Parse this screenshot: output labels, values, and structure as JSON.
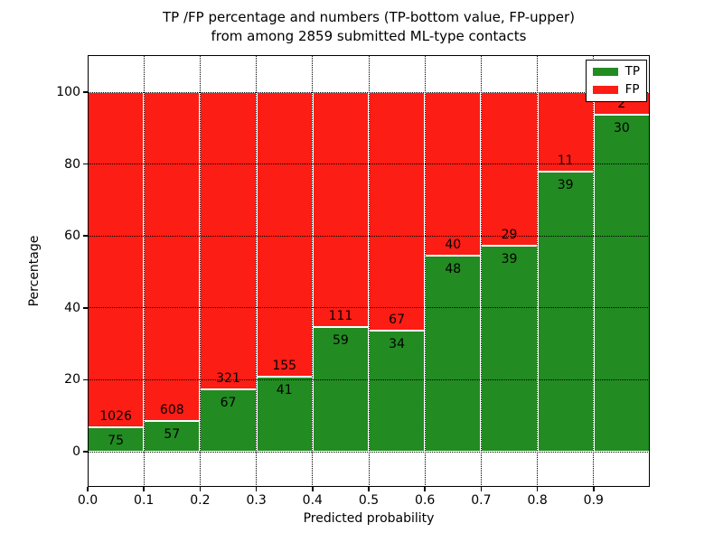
{
  "title": {
    "line1": "TP /FP percentage and numbers (TP-bottom value, FP-upper)",
    "line2": "from among 2859 submitted ML-type contacts"
  },
  "total_contacts": 2859,
  "chart_data": {
    "type": "bar",
    "stacked": true,
    "title": "TP /FP percentage and numbers (TP-bottom value, FP-upper) from among 2859 submitted ML-type contacts",
    "xlabel": "Predicted probability",
    "ylabel": "Percentage",
    "bin_start": [
      0.0,
      0.1,
      0.2,
      0.3,
      0.4,
      0.5,
      0.6,
      0.7,
      0.8,
      0.9
    ],
    "bin_width": 0.1,
    "series": [
      {
        "name": "TP",
        "color": "#228b22",
        "counts": [
          75,
          57,
          67,
          41,
          59,
          34,
          48,
          39,
          39,
          30
        ]
      },
      {
        "name": "FP",
        "color": "#fc1d15",
        "counts": [
          1026,
          608,
          321,
          155,
          111,
          67,
          40,
          29,
          11,
          2
        ]
      }
    ],
    "tp_percent_depicted": [
      6.81,
      8.57,
      17.27,
      20.92,
      34.71,
      33.66,
      54.55,
      57.35,
      78.0,
      93.75
    ],
    "x_tick_labels": [
      "0.0",
      "0.1",
      "0.2",
      "0.3",
      "0.4",
      "0.5",
      "0.6",
      "0.7",
      "0.8",
      "0.9"
    ],
    "y_tick_labels": [
      "0",
      "20",
      "40",
      "60",
      "80",
      "100"
    ],
    "y_tick_values": [
      0,
      20,
      40,
      60,
      80,
      100
    ],
    "xlim": [
      0.0,
      1.0
    ],
    "ylim": [
      -9.8,
      110.3
    ],
    "grid": "dotted black, drawn above bars",
    "bar_edge_color": "#ffffff",
    "legend": {
      "position": "upper right",
      "entries": [
        {
          "label": "TP",
          "color": "#228b22"
        },
        {
          "label": "FP",
          "color": "#fc1d15"
        }
      ]
    }
  }
}
